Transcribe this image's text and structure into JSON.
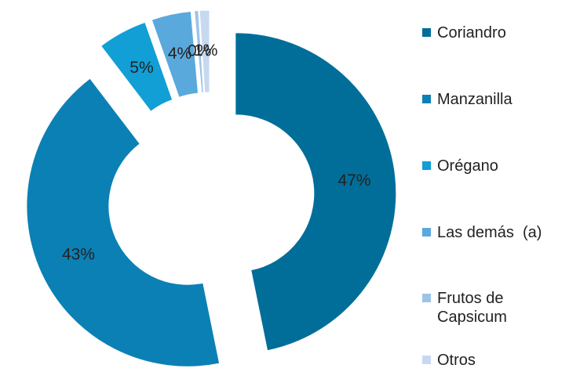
{
  "chart_data": {
    "type": "donut",
    "categories": [
      "Coriandro",
      "Manzanilla",
      "Orégano",
      "Las demás  (a)",
      "Frutos de Capsicum",
      "Otros"
    ],
    "values": [
      47,
      43,
      5,
      4,
      0.4,
      1
    ],
    "value_labels": [
      "47%",
      "43%",
      "5%",
      "4%",
      "0%",
      "1%"
    ],
    "colors": [
      "#006e99",
      "#0b80b5",
      "#119fd5",
      "#5aa9dd",
      "#9dc3e8",
      "#c6d9f0"
    ],
    "legend": "right"
  }
}
